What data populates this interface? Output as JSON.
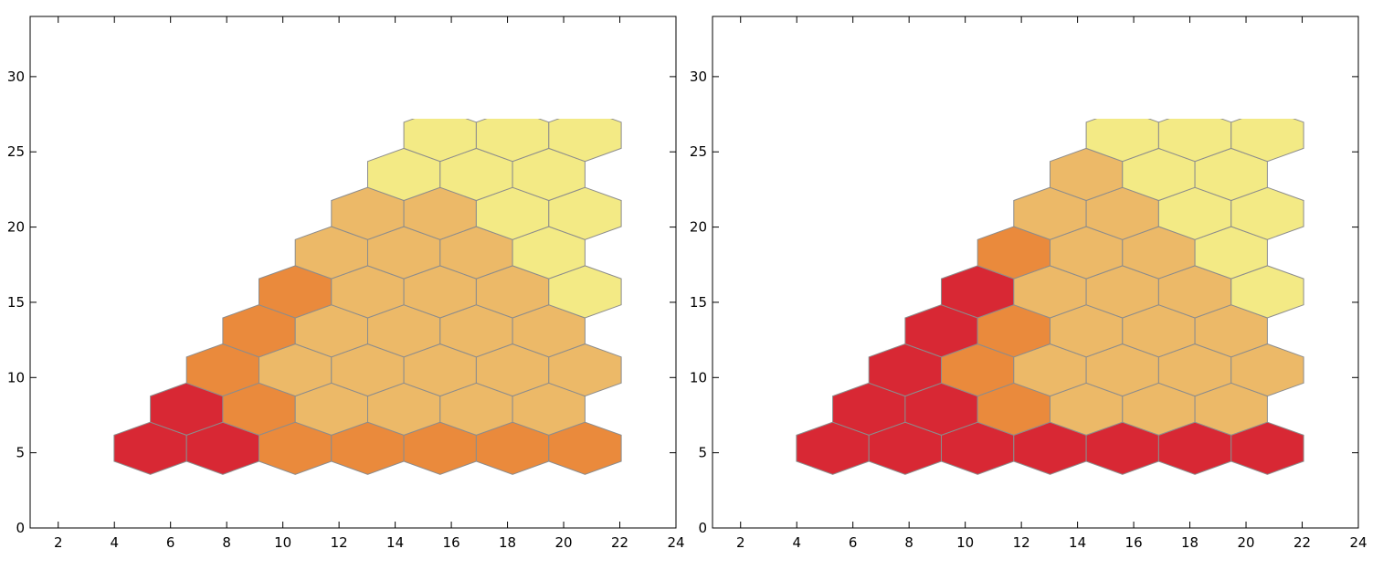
{
  "chart_data": [
    {
      "type": "heatmap",
      "xlim": [
        1,
        24
      ],
      "ylim": [
        0,
        34
      ],
      "xticks": [
        2,
        4,
        6,
        8,
        10,
        12,
        14,
        16,
        18,
        20,
        22,
        24
      ],
      "yticks": [
        0,
        5,
        10,
        15,
        20,
        25,
        30
      ],
      "grid": false,
      "colors": {
        "low": "#d82834",
        "mid": "#ea8a3c",
        "high": "#f3ea85"
      },
      "cells": [
        {
          "x": 5.28,
          "y": 5.3,
          "v": 0
        },
        {
          "x": 7.86,
          "y": 5.3,
          "v": 0
        },
        {
          "x": 10.44,
          "y": 5.3,
          "v": 1
        },
        {
          "x": 13.02,
          "y": 5.3,
          "v": 1
        },
        {
          "x": 15.6,
          "y": 5.3,
          "v": 1
        },
        {
          "x": 18.18,
          "y": 5.3,
          "v": 1
        },
        {
          "x": 20.76,
          "y": 5.3,
          "v": 1
        },
        {
          "x": 6.57,
          "y": 7.9,
          "v": 0
        },
        {
          "x": 9.15,
          "y": 7.9,
          "v": 1
        },
        {
          "x": 11.73,
          "y": 7.9,
          "v": 2
        },
        {
          "x": 14.31,
          "y": 7.9,
          "v": 2
        },
        {
          "x": 16.89,
          "y": 7.9,
          "v": 2
        },
        {
          "x": 19.47,
          "y": 7.9,
          "v": 2
        },
        {
          "x": 7.86,
          "y": 10.5,
          "v": 1
        },
        {
          "x": 10.44,
          "y": 10.5,
          "v": 2
        },
        {
          "x": 13.02,
          "y": 10.5,
          "v": 2
        },
        {
          "x": 15.6,
          "y": 10.5,
          "v": 2
        },
        {
          "x": 18.18,
          "y": 10.5,
          "v": 2
        },
        {
          "x": 20.76,
          "y": 10.5,
          "v": 2
        },
        {
          "x": 9.15,
          "y": 13.1,
          "v": 1
        },
        {
          "x": 11.73,
          "y": 13.1,
          "v": 2
        },
        {
          "x": 14.31,
          "y": 13.1,
          "v": 2
        },
        {
          "x": 16.89,
          "y": 13.1,
          "v": 2
        },
        {
          "x": 19.47,
          "y": 13.1,
          "v": 2
        },
        {
          "x": 10.44,
          "y": 15.7,
          "v": 1
        },
        {
          "x": 13.02,
          "y": 15.7,
          "v": 2
        },
        {
          "x": 15.6,
          "y": 15.7,
          "v": 2
        },
        {
          "x": 18.18,
          "y": 15.7,
          "v": 2
        },
        {
          "x": 20.76,
          "y": 15.7,
          "v": 3
        },
        {
          "x": 11.73,
          "y": 18.3,
          "v": 2
        },
        {
          "x": 14.31,
          "y": 18.3,
          "v": 2
        },
        {
          "x": 16.89,
          "y": 18.3,
          "v": 2
        },
        {
          "x": 19.47,
          "y": 18.3,
          "v": 3
        },
        {
          "x": 13.02,
          "y": 20.9,
          "v": 2
        },
        {
          "x": 15.6,
          "y": 20.9,
          "v": 2
        },
        {
          "x": 18.18,
          "y": 20.9,
          "v": 3
        },
        {
          "x": 20.76,
          "y": 20.9,
          "v": 3
        },
        {
          "x": 14.31,
          "y": 23.5,
          "v": 3
        },
        {
          "x": 16.89,
          "y": 23.5,
          "v": 3
        },
        {
          "x": 19.47,
          "y": 23.5,
          "v": 3
        },
        {
          "x": 15.6,
          "y": 26.1,
          "v": 3
        },
        {
          "x": 18.18,
          "y": 26.1,
          "v": 3
        },
        {
          "x": 20.76,
          "y": 26.1,
          "v": 3
        }
      ]
    },
    {
      "type": "heatmap",
      "xlim": [
        1,
        24
      ],
      "ylim": [
        0,
        34
      ],
      "xticks": [
        2,
        4,
        6,
        8,
        10,
        12,
        14,
        16,
        18,
        20,
        22,
        24
      ],
      "yticks": [
        0,
        5,
        10,
        15,
        20,
        25,
        30
      ],
      "grid": false,
      "colors": {
        "low": "#d82834",
        "mid": "#ea8a3c",
        "high": "#f3ea85"
      },
      "cells": [
        {
          "x": 5.28,
          "y": 5.3,
          "v": 0
        },
        {
          "x": 7.86,
          "y": 5.3,
          "v": 0
        },
        {
          "x": 10.44,
          "y": 5.3,
          "v": 0
        },
        {
          "x": 13.02,
          "y": 5.3,
          "v": 0
        },
        {
          "x": 15.6,
          "y": 5.3,
          "v": 0
        },
        {
          "x": 18.18,
          "y": 5.3,
          "v": 0
        },
        {
          "x": 20.76,
          "y": 5.3,
          "v": 0
        },
        {
          "x": 6.57,
          "y": 7.9,
          "v": 0
        },
        {
          "x": 9.15,
          "y": 7.9,
          "v": 0
        },
        {
          "x": 11.73,
          "y": 7.9,
          "v": 1
        },
        {
          "x": 14.31,
          "y": 7.9,
          "v": 2
        },
        {
          "x": 16.89,
          "y": 7.9,
          "v": 2
        },
        {
          "x": 19.47,
          "y": 7.9,
          "v": 2
        },
        {
          "x": 7.86,
          "y": 10.5,
          "v": 0
        },
        {
          "x": 10.44,
          "y": 10.5,
          "v": 1
        },
        {
          "x": 13.02,
          "y": 10.5,
          "v": 2
        },
        {
          "x": 15.6,
          "y": 10.5,
          "v": 2
        },
        {
          "x": 18.18,
          "y": 10.5,
          "v": 2
        },
        {
          "x": 20.76,
          "y": 10.5,
          "v": 2
        },
        {
          "x": 9.15,
          "y": 13.1,
          "v": 0
        },
        {
          "x": 11.73,
          "y": 13.1,
          "v": 1
        },
        {
          "x": 14.31,
          "y": 13.1,
          "v": 2
        },
        {
          "x": 16.89,
          "y": 13.1,
          "v": 2
        },
        {
          "x": 19.47,
          "y": 13.1,
          "v": 2
        },
        {
          "x": 10.44,
          "y": 15.7,
          "v": 0
        },
        {
          "x": 13.02,
          "y": 15.7,
          "v": 2
        },
        {
          "x": 15.6,
          "y": 15.7,
          "v": 2
        },
        {
          "x": 18.18,
          "y": 15.7,
          "v": 2
        },
        {
          "x": 20.76,
          "y": 15.7,
          "v": 3
        },
        {
          "x": 11.73,
          "y": 18.3,
          "v": 1
        },
        {
          "x": 14.31,
          "y": 18.3,
          "v": 2
        },
        {
          "x": 16.89,
          "y": 18.3,
          "v": 2
        },
        {
          "x": 19.47,
          "y": 18.3,
          "v": 3
        },
        {
          "x": 13.02,
          "y": 20.9,
          "v": 2
        },
        {
          "x": 15.6,
          "y": 20.9,
          "v": 2
        },
        {
          "x": 18.18,
          "y": 20.9,
          "v": 3
        },
        {
          "x": 20.76,
          "y": 20.9,
          "v": 3
        },
        {
          "x": 14.31,
          "y": 23.5,
          "v": 2
        },
        {
          "x": 16.89,
          "y": 23.5,
          "v": 3
        },
        {
          "x": 19.47,
          "y": 23.5,
          "v": 3
        },
        {
          "x": 15.6,
          "y": 26.1,
          "v": 3
        },
        {
          "x": 18.18,
          "y": 26.1,
          "v": 3
        },
        {
          "x": 20.76,
          "y": 26.1,
          "v": 3
        }
      ]
    }
  ]
}
